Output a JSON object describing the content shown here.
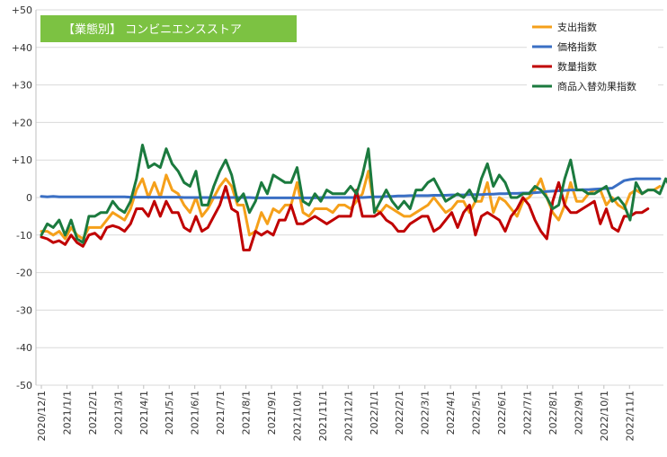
{
  "chart_data": {
    "type": "line",
    "title": "【業態別】 コンビニエンスストア",
    "title_bg_color": "#7cc242",
    "ylim": [
      -50,
      50
    ],
    "y_ticks": [
      50,
      40,
      30,
      20,
      10,
      0,
      -10,
      -20,
      -30,
      -40,
      -50
    ],
    "y_tick_labels": [
      "+50",
      "+40",
      "+30",
      "+20",
      "+10",
      "0",
      "-10",
      "-20",
      "-30",
      "-40",
      "-50"
    ],
    "x_tick_labels": [
      "2020/12/1",
      "2021/1/1",
      "2021/2/1",
      "2021/3/1",
      "2021/4/1",
      "2021/5/1",
      "2021/6/1",
      "2021/7/1",
      "2021/8/1",
      "2021/9/1",
      "2021/10/1",
      "2021/11/1",
      "2021/12/1",
      "2022/1/1",
      "2022/2/1",
      "2022/3/1",
      "2022/4/1",
      "2022/5/1",
      "2022/6/1",
      "2022/7/1",
      "2022/8/1",
      "2022/9/1",
      "2022/10/1",
      "2022/11/1"
    ],
    "points_per_month": 4.3,
    "grid": true,
    "legend_position": "top-right",
    "series": [
      {
        "name": "支出指数",
        "color": "#f5a01a",
        "values": [
          -9,
          -9,
          -10,
          -9,
          -11,
          -8,
          -10,
          -11,
          -8,
          -8,
          -8,
          -6,
          -4,
          -5,
          -6,
          -3,
          2,
          5,
          0,
          4,
          0,
          6,
          2,
          1,
          -2,
          -4,
          0,
          -5,
          -3,
          0,
          3,
          5,
          3,
          -2,
          -2,
          -10,
          -9,
          -4,
          -7,
          -3,
          -4,
          -2,
          -2,
          4,
          -4,
          -5,
          -3,
          -3,
          -3,
          -4,
          -2,
          -2,
          -3,
          -1,
          1,
          7,
          -3,
          -4,
          -2,
          -3,
          -4,
          -5,
          -5,
          -4,
          -3,
          -2,
          0,
          -2,
          -4,
          -3,
          -1,
          -1,
          -4,
          -1,
          -1,
          4,
          -4,
          0,
          -1,
          -3,
          -5,
          -1,
          0,
          2,
          5,
          0,
          -4,
          -6,
          -2,
          4,
          -1,
          -1,
          1,
          2,
          2,
          -2,
          0,
          -2,
          -3,
          1,
          2,
          1,
          2,
          2,
          3
        ]
      },
      {
        "name": "価格指数",
        "color": "#3a6fc4",
        "values": [
          0.3,
          0.2,
          0.3,
          0.2,
          0.2,
          0.2,
          0.2,
          0.2,
          0.2,
          0.2,
          0.2,
          0.2,
          0.2,
          0.2,
          0.2,
          0.1,
          0.1,
          0.1,
          0.1,
          0.1,
          0.1,
          0.1,
          0.1,
          0.1,
          0,
          0,
          0,
          0,
          0,
          0,
          0,
          0,
          0,
          0,
          0,
          0,
          -0.1,
          -0.1,
          -0.1,
          -0.1,
          -0.1,
          -0.1,
          -0.1,
          -0.1,
          -0.1,
          -0.1,
          -0.1,
          0,
          0,
          0,
          0,
          0,
          0,
          0,
          0,
          0.1,
          0.2,
          0.2,
          0.3,
          0.3,
          0.4,
          0.4,
          0.5,
          0.5,
          0.5,
          0.5,
          0.6,
          0.6,
          0.6,
          0.7,
          0.7,
          0.7,
          0.8,
          0.8,
          0.8,
          0.9,
          0.9,
          1,
          1,
          1.1,
          1.1,
          1.2,
          1.2,
          1.3,
          1.4,
          1.6,
          1.7,
          1.8,
          1.9,
          2,
          2,
          2.1,
          2.1,
          2.2,
          2.3,
          2.4,
          2.5,
          3.5,
          4.5,
          4.8,
          5,
          5,
          5,
          5,
          5
        ]
      },
      {
        "name": "数量指数",
        "color": "#c00000",
        "values": [
          -10.5,
          -11,
          -12,
          -11.5,
          -12.5,
          -10,
          -12,
          -13,
          -10,
          -9.5,
          -11,
          -8,
          -7.5,
          -8,
          -9,
          -7,
          -3,
          -3,
          -5,
          -1,
          -5,
          -1,
          -4,
          -4,
          -8,
          -9,
          -5,
          -9,
          -8,
          -5,
          -2,
          3,
          -3,
          -4,
          -14,
          -14,
          -9,
          -10,
          -9,
          -10,
          -6,
          -6,
          -2,
          -7,
          -7,
          -6,
          -5,
          -6,
          -7,
          -6,
          -5,
          -5,
          -5,
          2,
          -5,
          -5,
          -5,
          -4,
          -6,
          -7,
          -9,
          -9,
          -7,
          -6,
          -5,
          -5,
          -9,
          -8,
          -6,
          -4,
          -8,
          -4,
          -2,
          -10,
          -5,
          -4,
          -5,
          -6,
          -9,
          -5,
          -3,
          0,
          -2,
          -6,
          -9,
          -11,
          -1,
          4,
          -2,
          -4,
          -4,
          -3,
          -2,
          -1,
          -7,
          -3,
          -8,
          -9,
          -5,
          -5,
          -4,
          -4,
          -3
        ]
      },
      {
        "name": "商品入替効果指数",
        "color": "#1b7a3e",
        "values": [
          -10,
          -7,
          -8,
          -6,
          -10,
          -6,
          -11,
          -12,
          -5,
          -5,
          -4,
          -4,
          -1,
          -3,
          -4,
          -1,
          5,
          14,
          8,
          9,
          8,
          13,
          9,
          7,
          4,
          3,
          7,
          -2,
          -2,
          3,
          7,
          10,
          6,
          -1,
          1,
          -4,
          -1,
          4,
          1,
          6,
          5,
          4,
          4,
          8,
          -1,
          -2,
          1,
          -1,
          2,
          1,
          1,
          1,
          3,
          1,
          6,
          13,
          -4,
          -1,
          2,
          -1,
          -3,
          -1,
          -3,
          2,
          2,
          4,
          5,
          2,
          -1,
          0,
          1,
          0,
          2,
          -1,
          5,
          9,
          3,
          6,
          4,
          0,
          0,
          1,
          1,
          3,
          2,
          0,
          -3,
          -2,
          5,
          10,
          2,
          2,
          1,
          1,
          2,
          3,
          -1,
          0,
          -2,
          -6,
          4,
          1,
          2,
          2,
          1,
          5,
          2
        ]
      }
    ]
  }
}
